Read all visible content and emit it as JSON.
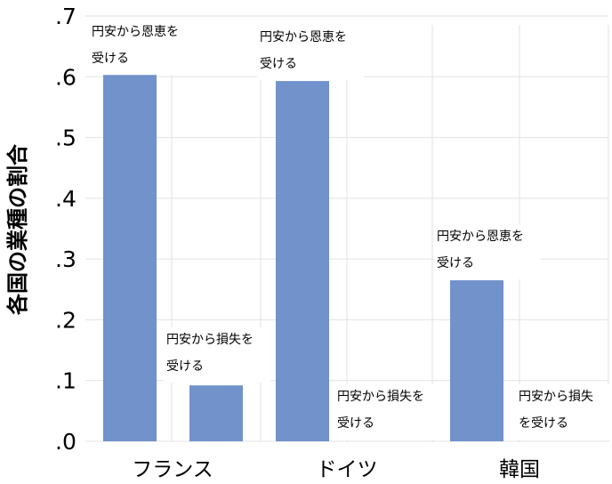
{
  "chart_data": {
    "type": "bar",
    "categories": [
      "フランス",
      "ドイツ",
      "韓国"
    ],
    "series": [
      {
        "values": [
          0.603,
          0.593,
          0.265
        ],
        "color": "#7192ca"
      },
      {
        "values": [
          0.092,
          0.0,
          0.0
        ],
        "color": "#7192ca"
      }
    ],
    "annotations": [
      [
        "円安から恩恵を",
        "受ける"
      ],
      [
        "円安から損失を",
        "受ける"
      ],
      [
        "円安から恩恵を",
        "受ける"
      ],
      [
        "円安から損失を",
        "受ける"
      ],
      [
        "円安から恩恵を",
        "受ける"
      ],
      [
        "円安から損失",
        "を受ける"
      ]
    ],
    "ylabel": "各国の業種の割合",
    "yticks": [
      ".0",
      ".1",
      ".2",
      ".3",
      ".4",
      ".5",
      ".6",
      ".7"
    ],
    "ylim": [
      0,
      0.7
    ],
    "grid": true,
    "bar_color": "#7192ca",
    "grid_color": "#e2e2e2"
  }
}
